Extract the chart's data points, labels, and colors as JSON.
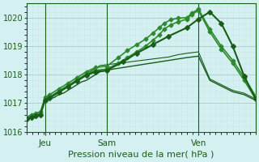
{
  "title": "Pression niveau de la mer( hPa )",
  "bg_color": "#d4f0f0",
  "grid_color_major": "#b0d0d0",
  "grid_color_minor": "#c8e8e8",
  "line_color_dark": "#1a5c1a",
  "line_color_mid": "#2d8b2d",
  "ylim": [
    1016,
    1020.5
  ],
  "yticks": [
    1016,
    1017,
    1018,
    1019,
    1020
  ],
  "xtick_labels": [
    "Jeu",
    "Sam",
    "Ven"
  ],
  "xtick_positions": [
    0.08,
    0.35,
    0.75
  ],
  "series": [
    {
      "x": [
        0.0,
        0.02,
        0.04,
        0.06,
        0.08,
        0.1,
        0.12,
        0.14,
        0.16,
        0.18,
        0.2,
        0.22,
        0.24,
        0.26,
        0.28,
        0.3,
        0.32,
        0.35,
        0.38,
        0.42,
        0.46,
        0.5,
        0.54,
        0.58,
        0.62,
        0.66,
        0.7,
        0.75,
        0.8,
        0.85,
        0.9,
        0.95,
        1.0
      ],
      "y": [
        1016.45,
        1016.5,
        1016.55,
        1016.6,
        1017.1,
        1017.15,
        1017.2,
        1017.3,
        1017.35,
        1017.45,
        1017.55,
        1017.65,
        1017.75,
        1017.8,
        1017.9,
        1018.0,
        1018.1,
        1018.15,
        1018.2,
        1018.25,
        1018.3,
        1018.35,
        1018.4,
        1018.45,
        1018.5,
        1018.55,
        1018.6,
        1018.65,
        1017.8,
        1017.6,
        1017.4,
        1017.3,
        1017.1
      ],
      "color": "#1a5c1a",
      "lw": 1.0,
      "marker": null,
      "ms": 0
    },
    {
      "x": [
        0.0,
        0.02,
        0.04,
        0.06,
        0.08,
        0.1,
        0.12,
        0.14,
        0.16,
        0.18,
        0.2,
        0.22,
        0.24,
        0.26,
        0.28,
        0.3,
        0.32,
        0.35,
        0.38,
        0.42,
        0.46,
        0.5,
        0.54,
        0.58,
        0.62,
        0.66,
        0.7,
        0.75,
        0.8,
        0.85,
        0.9,
        0.95,
        1.0
      ],
      "y": [
        1016.45,
        1016.5,
        1016.55,
        1016.62,
        1017.12,
        1017.2,
        1017.32,
        1017.42,
        1017.52,
        1017.62,
        1017.72,
        1017.82,
        1017.92,
        1018.02,
        1018.12,
        1018.22,
        1018.32,
        1018.35,
        1018.38,
        1018.42,
        1018.46,
        1018.5,
        1018.54,
        1018.58,
        1018.62,
        1018.7,
        1018.75,
        1018.8,
        1017.85,
        1017.65,
        1017.45,
        1017.35,
        1017.15
      ],
      "color": "#1a5c1a",
      "lw": 0.8,
      "marker": null,
      "ms": 0
    },
    {
      "x": [
        0.0,
        0.02,
        0.04,
        0.06,
        0.08,
        0.1,
        0.14,
        0.18,
        0.22,
        0.26,
        0.3,
        0.35,
        0.4,
        0.44,
        0.48,
        0.52,
        0.55,
        0.58,
        0.6,
        0.63,
        0.66,
        0.7,
        0.72,
        0.75,
        0.8,
        0.85,
        0.9,
        0.95,
        1.0
      ],
      "y": [
        1016.45,
        1016.55,
        1016.6,
        1016.65,
        1017.15,
        1017.22,
        1017.42,
        1017.62,
        1017.82,
        1018.02,
        1018.15,
        1018.2,
        1018.4,
        1018.6,
        1018.8,
        1019.0,
        1019.2,
        1019.4,
        1019.6,
        1019.75,
        1019.85,
        1019.95,
        1020.1,
        1020.25,
        1019.5,
        1018.9,
        1018.4,
        1017.8,
        1017.15
      ],
      "color": "#2d8b2d",
      "lw": 1.2,
      "marker": "D",
      "ms": 2.5
    },
    {
      "x": [
        0.0,
        0.02,
        0.04,
        0.06,
        0.08,
        0.1,
        0.14,
        0.18,
        0.22,
        0.26,
        0.3,
        0.35,
        0.4,
        0.44,
        0.48,
        0.52,
        0.55,
        0.58,
        0.6,
        0.63,
        0.66,
        0.7,
        0.72,
        0.75,
        0.8,
        0.85,
        0.9,
        0.95,
        1.0
      ],
      "y": [
        1016.5,
        1016.6,
        1016.65,
        1016.7,
        1017.2,
        1017.3,
        1017.5,
        1017.7,
        1017.9,
        1018.1,
        1018.25,
        1018.3,
        1018.6,
        1018.85,
        1019.05,
        1019.25,
        1019.45,
        1019.65,
        1019.8,
        1019.93,
        1019.98,
        1020.0,
        1020.15,
        1020.3,
        1019.6,
        1019.0,
        1018.5,
        1017.9,
        1017.25
      ],
      "color": "#2d8b2d",
      "lw": 1.2,
      "marker": "D",
      "ms": 2.5
    },
    {
      "x": [
        0.0,
        0.02,
        0.04,
        0.06,
        0.08,
        0.1,
        0.14,
        0.18,
        0.22,
        0.26,
        0.3,
        0.35,
        0.42,
        0.48,
        0.55,
        0.62,
        0.7,
        0.75,
        0.8,
        0.85,
        0.9,
        0.95,
        1.0
      ],
      "y": [
        1016.45,
        1016.5,
        1016.55,
        1016.6,
        1017.1,
        1017.18,
        1017.38,
        1017.58,
        1017.78,
        1017.98,
        1018.1,
        1018.15,
        1018.45,
        1018.75,
        1019.05,
        1019.35,
        1019.65,
        1019.95,
        1020.2,
        1019.8,
        1019.0,
        1017.95,
        1017.15
      ],
      "color": "#1a5c1a",
      "lw": 1.5,
      "marker": "D",
      "ms": 3.0
    }
  ],
  "vlines": [
    0.08,
    0.35,
    0.75
  ],
  "vline_color": "#1a5c1a"
}
